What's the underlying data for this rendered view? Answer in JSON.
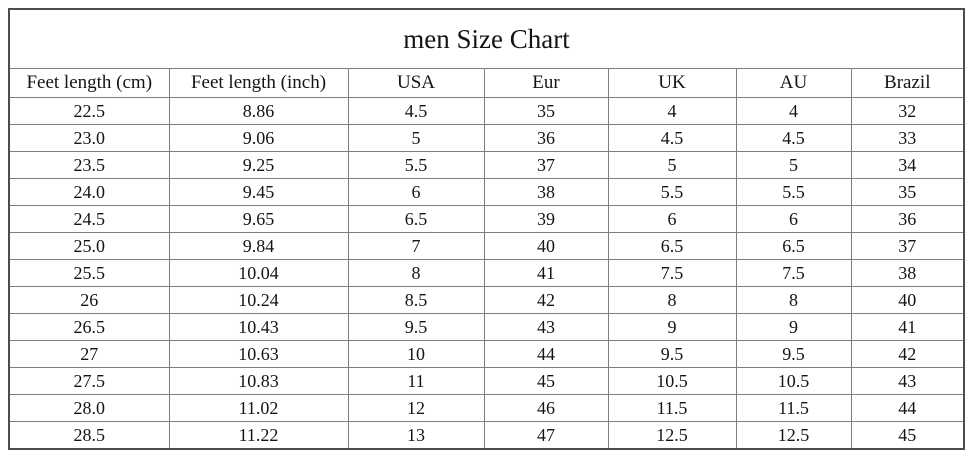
{
  "title": "men Size Chart",
  "chart_data": {
    "type": "table",
    "title": "men Size Chart",
    "columns": [
      "Feet length (cm)",
      "Feet length (inch)",
      "USA",
      "Eur",
      "UK",
      "AU",
      "Brazil"
    ],
    "rows": [
      [
        "22.5",
        "8.86",
        "4.5",
        "35",
        "4",
        "4",
        "32"
      ],
      [
        "23.0",
        "9.06",
        "5",
        "36",
        "4.5",
        "4.5",
        "33"
      ],
      [
        "23.5",
        "9.25",
        "5.5",
        "37",
        "5",
        "5",
        "34"
      ],
      [
        "24.0",
        "9.45",
        "6",
        "38",
        "5.5",
        "5.5",
        "35"
      ],
      [
        "24.5",
        "9.65",
        "6.5",
        "39",
        "6",
        "6",
        "36"
      ],
      [
        "25.0",
        "9.84",
        "7",
        "40",
        "6.5",
        "6.5",
        "37"
      ],
      [
        "25.5",
        "10.04",
        "8",
        "41",
        "7.5",
        "7.5",
        "38"
      ],
      [
        "26",
        "10.24",
        "8.5",
        "42",
        "8",
        "8",
        "40"
      ],
      [
        "26.5",
        "10.43",
        "9.5",
        "43",
        "9",
        "9",
        "41"
      ],
      [
        "27",
        "10.63",
        "10",
        "44",
        "9.5",
        "9.5",
        "42"
      ],
      [
        "27.5",
        "10.83",
        "11",
        "45",
        "10.5",
        "10.5",
        "43"
      ],
      [
        "28.0",
        "11.02",
        "12",
        "46",
        "11.5",
        "11.5",
        "44"
      ],
      [
        "28.5",
        "11.22",
        "13",
        "47",
        "12.5",
        "12.5",
        "45"
      ]
    ]
  },
  "colors": {
    "text": "#141414",
    "border_inner": "#7e7e7e",
    "border_outer": "#4d4d4d",
    "background": "#ffffff"
  }
}
